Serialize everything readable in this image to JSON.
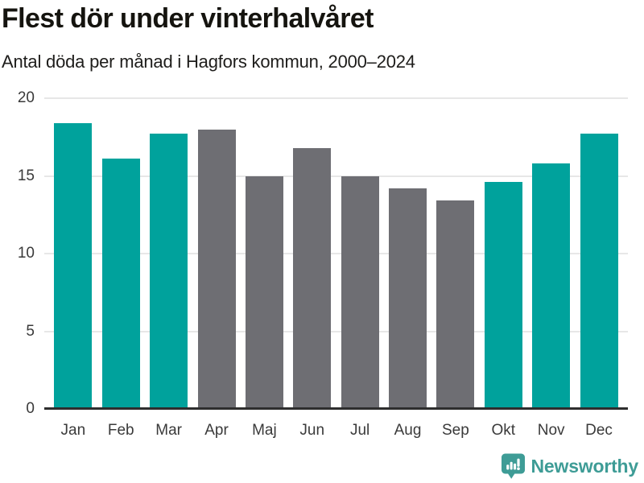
{
  "header": {
    "title": "Flest dör under vinterhalvåret",
    "subtitle": "Antal döda per månad i Hagfors kommun, 2000–2024"
  },
  "chart_data": {
    "type": "bar",
    "title": "Flest dör under vinterhalvåret",
    "subtitle": "Antal döda per månad i Hagfors kommun, 2000–2024",
    "categories": [
      "Jan",
      "Feb",
      "Mar",
      "Apr",
      "Maj",
      "Jun",
      "Jul",
      "Aug",
      "Sep",
      "Okt",
      "Nov",
      "Dec"
    ],
    "values": [
      18.4,
      16.1,
      17.7,
      18.0,
      15.0,
      16.8,
      15.0,
      14.2,
      13.4,
      14.6,
      15.8,
      17.7
    ],
    "bar_groups": [
      "winter",
      "winter",
      "winter",
      "summer",
      "summer",
      "summer",
      "summer",
      "summer",
      "summer",
      "winter",
      "winter",
      "winter"
    ],
    "palette": {
      "winter": "#00a29c",
      "summer": "#6e6e73"
    },
    "xlabel": "",
    "ylabel": "",
    "ylim": [
      0,
      20
    ],
    "yticks": [
      0,
      5,
      10,
      15,
      20
    ],
    "grid": true,
    "legend": "none",
    "gridline_color": "#e7e7e7",
    "axis_color": "#2e2e2e"
  },
  "footer": {
    "brand": "Newsworthy",
    "brand_color": "#3e9c96",
    "logo_icon": "bar-chart-speech-bubble-icon"
  }
}
